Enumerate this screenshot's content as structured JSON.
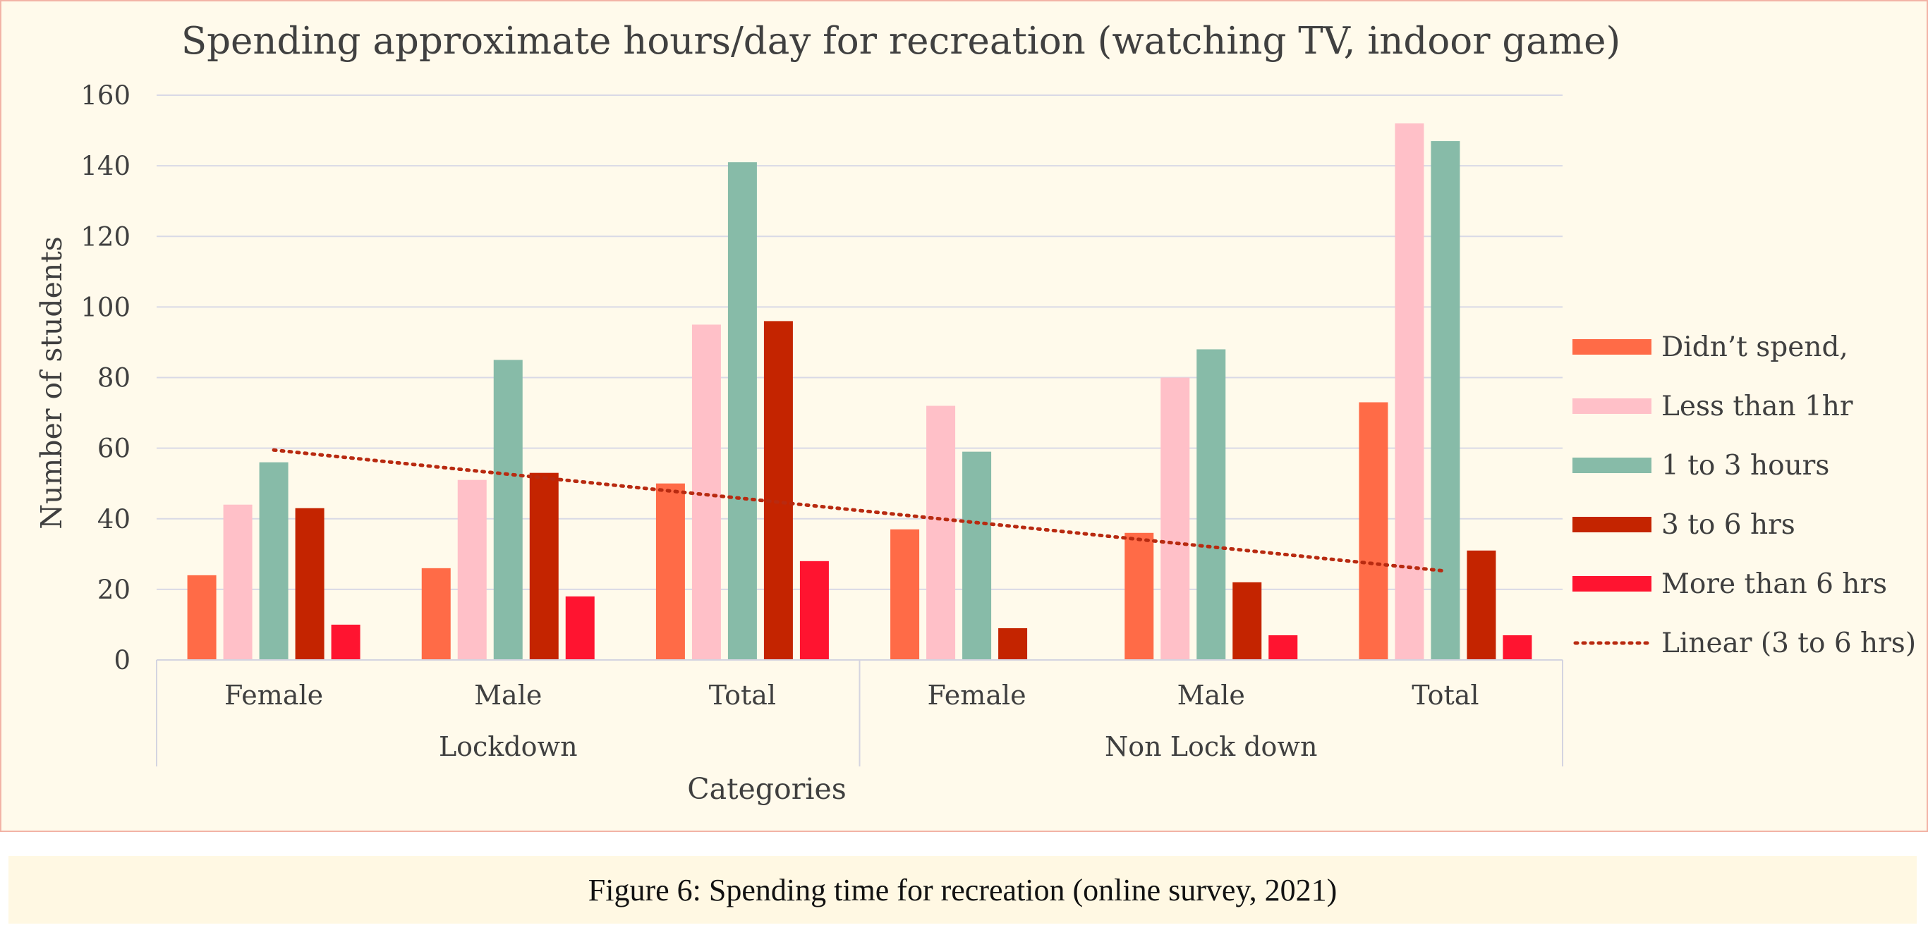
{
  "chart_data": {
    "type": "bar",
    "title": "Spending approximate hours/day for recreation (watching TV, indoor game)",
    "xlabel": "Categories",
    "ylabel": "Number of students",
    "ylim": [
      0,
      160
    ],
    "yticks": [
      0,
      20,
      40,
      60,
      80,
      100,
      120,
      140,
      160
    ],
    "groups": [
      {
        "label": "Lockdown",
        "categories": [
          "Female",
          "Male",
          "Total"
        ]
      },
      {
        "label": "Non Lock down",
        "categories": [
          "Female",
          "Male",
          "Total"
        ]
      }
    ],
    "categories": [
      "Female",
      "Male",
      "Total",
      "Female",
      "Male",
      "Total"
    ],
    "series": [
      {
        "name": "Didn’t spend,",
        "color": "#ff6b47",
        "values": [
          24,
          26,
          50,
          37,
          36,
          73
        ]
      },
      {
        "name": "Less than 1hr",
        "color": "#ffc0c8",
        "values": [
          44,
          51,
          95,
          72,
          80,
          152
        ]
      },
      {
        "name": "1 to 3 hours",
        "color": "#87bba8",
        "values": [
          56,
          85,
          141,
          59,
          88,
          147
        ]
      },
      {
        "name": "3 to 6 hrs",
        "color": "#c42400",
        "values": [
          43,
          53,
          96,
          9,
          22,
          31
        ]
      },
      {
        "name": "More than 6 hrs",
        "color": "#ff1430",
        "values": [
          10,
          18,
          28,
          0,
          7,
          7
        ]
      }
    ],
    "trendline": {
      "name": "Linear (3 to 6 hrs)",
      "series": "3 to 6 hrs",
      "type": "linear",
      "style": "dotted",
      "color": "#b82a10"
    },
    "grid": true,
    "legend_position": "right"
  },
  "caption": "Figure 6: Spending time for recreation (online survey, 2021)"
}
